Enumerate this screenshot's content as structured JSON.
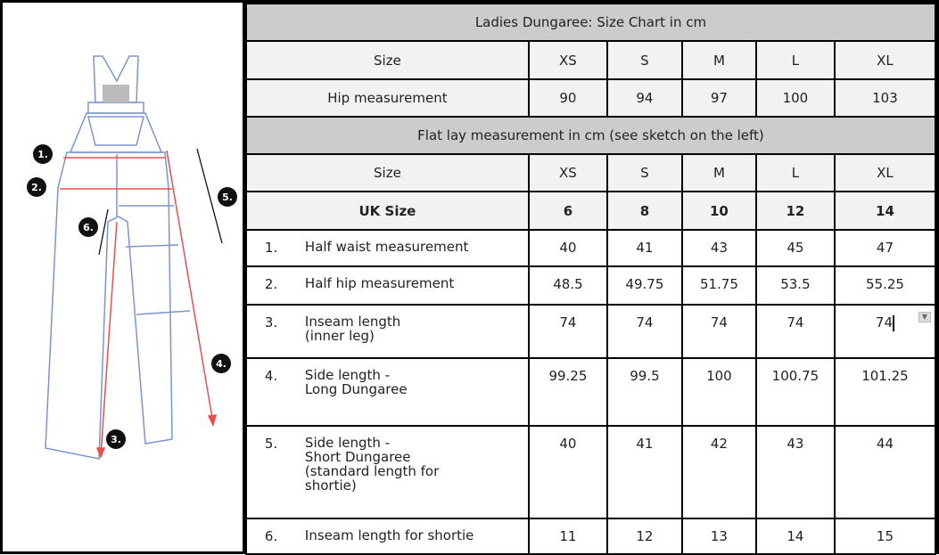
{
  "sketch": {
    "markers": [
      "1.",
      "2.",
      "3.",
      "4.",
      "5.",
      "6."
    ]
  },
  "chart1": {
    "title": "Ladies Dungaree: Size Chart in cm",
    "size_label": "Size",
    "sizes": [
      "XS",
      "S",
      "M",
      "L",
      "XL"
    ],
    "hip_label": "Hip measurement",
    "hip": [
      "90",
      "94",
      "97",
      "100",
      "103"
    ]
  },
  "chart2": {
    "title": "Flat lay measurement in cm (see sketch on the left)",
    "size_label": "Size",
    "sizes": [
      "XS",
      "S",
      "M",
      "L",
      "XL"
    ],
    "uk_label": "UK Size",
    "uk": [
      "6",
      "8",
      "10",
      "12",
      "14"
    ],
    "rows": [
      {
        "num": "1.",
        "label": "Half waist measurement",
        "values": [
          "40",
          "41",
          "43",
          "45",
          "47"
        ]
      },
      {
        "num": "2.",
        "label": "Half hip measurement",
        "values": [
          "48.5",
          "49.75",
          "51.75",
          "53.5",
          "55.25"
        ]
      },
      {
        "num": "3.",
        "label": "Inseam length\n(inner leg)",
        "values": [
          "74",
          "74",
          "74",
          "74",
          "74"
        ]
      },
      {
        "num": "4.",
        "label": "Side length -\nLong Dungaree",
        "values": [
          "99.25",
          "99.5",
          "100",
          "100.75",
          "101.25"
        ]
      },
      {
        "num": "5.",
        "label": "Side length -\nShort Dungaree\n(standard length for\nshortie)",
        "values": [
          "40",
          "41",
          "42",
          "43",
          "44"
        ]
      },
      {
        "num": "6.",
        "label": "Inseam length for shortie",
        "values": [
          "11",
          "12",
          "13",
          "14",
          "15"
        ]
      }
    ]
  },
  "colors": {
    "measure_arrow": "#e8504f",
    "garment_line": "#6f8fc8",
    "marker": "#111111"
  }
}
